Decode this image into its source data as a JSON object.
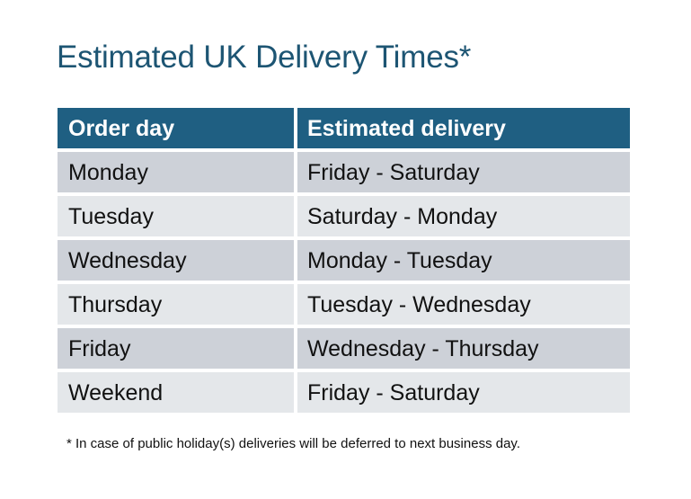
{
  "title": "Estimated UK Delivery Times*",
  "table": {
    "headers": [
      "Order day",
      "Estimated delivery"
    ],
    "rows": [
      [
        "Monday",
        "Friday - Saturday"
      ],
      [
        "Tuesday",
        "Saturday - Monday"
      ],
      [
        "Wednesday",
        "Monday - Tuesday"
      ],
      [
        "Thursday",
        "Tuesday - Wednesday"
      ],
      [
        "Friday",
        "Wednesday - Thursday"
      ],
      [
        "Weekend",
        "Friday - Saturday"
      ]
    ]
  },
  "footnote": "* In case of public holiday(s) deliveries will be deferred to next business day.",
  "colors": {
    "header": "#1f5f82",
    "title": "#1d5573",
    "row_odd": "#cdd1d8",
    "row_even": "#e4e7ea"
  }
}
